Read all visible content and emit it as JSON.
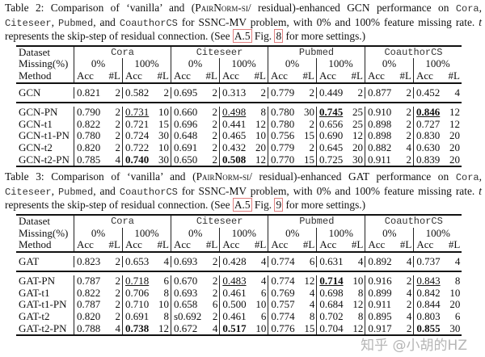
{
  "tables": [
    {
      "caption": [
        {
          "t": "Table 2:  Comparison of ‘vanilla’ and ("
        },
        {
          "t": "PairNorm-si",
          "c": "sc"
        },
        {
          "t": "/ residual)-enhanced GCN performance on "
        },
        {
          "t": "Cora",
          "c": "mono"
        },
        {
          "t": ", "
        },
        {
          "t": "Citeseer",
          "c": "mono"
        },
        {
          "t": ", "
        },
        {
          "t": "Pubmed",
          "c": "mono"
        },
        {
          "t": ", and "
        },
        {
          "t": "CoauthorCS",
          "c": "mono"
        },
        {
          "t": " for SSNC-MV problem, with 0% and 100% feature missing rate. "
        },
        {
          "t": "t",
          "c": "it"
        },
        {
          "t": " represents the skip-step of residual connection. (See "
        },
        {
          "t": "A.5",
          "c": "ref"
        },
        {
          "t": " Fig. "
        },
        {
          "t": "8",
          "c": "ref"
        },
        {
          "t": " for more settings.)"
        }
      ],
      "header": {
        "dataset": "Dataset",
        "missing": "Missing(%)",
        "method": "Method",
        "datasets": [
          "Cora",
          "Citeseer",
          "Pubmed",
          "CoauthorCS"
        ],
        "rates": [
          "0%",
          "100%"
        ],
        "acc": "Acc",
        "layers": "#L"
      },
      "baseline": {
        "method": "GCN",
        "cells": [
          [
            "0.821",
            "2"
          ],
          [
            "0.582",
            "2"
          ],
          [
            "0.695",
            "2"
          ],
          [
            "0.313",
            "2"
          ],
          [
            "0.779",
            "2"
          ],
          [
            "0.449",
            "2"
          ],
          [
            "0.877",
            "2"
          ],
          [
            "0.452",
            "4"
          ]
        ]
      },
      "rows": [
        {
          "method": "GCN-PN",
          "cells": [
            [
              "0.790",
              "2"
            ],
            [
              "0.731",
              "10",
              "u"
            ],
            [
              "0.660",
              "2"
            ],
            [
              "0.498",
              "8",
              "u"
            ],
            [
              "0.780",
              "30"
            ],
            [
              "0.745",
              "25",
              "bu"
            ],
            [
              "0.910",
              "2"
            ],
            [
              "0.846",
              "12",
              "bu"
            ]
          ]
        },
        {
          "method": "GCN-t1",
          "cells": [
            [
              "0.822",
              "2"
            ],
            [
              "0.721",
              "15"
            ],
            [
              "0.696",
              "2"
            ],
            [
              "0.441",
              "12"
            ],
            [
              "0.780",
              "2"
            ],
            [
              "0.656",
              "25"
            ],
            [
              "0.898",
              "2"
            ],
            [
              "0.727",
              "12"
            ]
          ]
        },
        {
          "method": "GCN-t1-PN",
          "cells": [
            [
              "0.780",
              "2"
            ],
            [
              "0.724",
              "30"
            ],
            [
              "0.648",
              "2"
            ],
            [
              "0.465",
              "10"
            ],
            [
              "0.756",
              "15"
            ],
            [
              "0.690",
              "12"
            ],
            [
              "0.898",
              "2"
            ],
            [
              "0.830",
              "20"
            ]
          ]
        },
        {
          "method": "GCN-t2",
          "cells": [
            [
              "0.820",
              "2"
            ],
            [
              "0.722",
              "10"
            ],
            [
              "0.691",
              "2"
            ],
            [
              "0.432",
              "20"
            ],
            [
              "0.779",
              "2"
            ],
            [
              "0.645",
              "20"
            ],
            [
              "0.882",
              "4"
            ],
            [
              "0.630",
              "20"
            ]
          ]
        },
        {
          "method": "GCN-t2-PN",
          "cells": [
            [
              "0.785",
              "4"
            ],
            [
              "0.740",
              "30",
              "b"
            ],
            [
              "0.650",
              "2"
            ],
            [
              "0.508",
              "12",
              "b"
            ],
            [
              "0.770",
              "15"
            ],
            [
              "0.725",
              "30"
            ],
            [
              "0.911",
              "2"
            ],
            [
              "0.839",
              "20"
            ]
          ]
        }
      ]
    },
    {
      "caption": [
        {
          "t": "Table 3:  Comparison of ‘vanilla’ and ("
        },
        {
          "t": "PairNorm-si",
          "c": "sc"
        },
        {
          "t": "/ residual)-enhanced GAT performance on "
        },
        {
          "t": "Cora",
          "c": "mono"
        },
        {
          "t": ", "
        },
        {
          "t": "Citeseer",
          "c": "mono"
        },
        {
          "t": ", "
        },
        {
          "t": "Pubmed",
          "c": "mono"
        },
        {
          "t": ", and "
        },
        {
          "t": "CoauthorCS",
          "c": "mono"
        },
        {
          "t": " for SSNC-MV problem, with 0% and 100% feature missing rate. "
        },
        {
          "t": "t",
          "c": "it"
        },
        {
          "t": " represents the skip-step of residual connection. (See "
        },
        {
          "t": "A.5",
          "c": "ref"
        },
        {
          "t": " Fig. "
        },
        {
          "t": "9",
          "c": "ref"
        },
        {
          "t": " for more settings.)"
        }
      ],
      "header": {
        "dataset": "Dataset",
        "missing": "Missing(%)",
        "method": "Method",
        "datasets": [
          "Cora",
          "Citeseer",
          "Pubmed",
          "CoauthorCS"
        ],
        "rates": [
          "0%",
          "100%"
        ],
        "acc": "Acc",
        "layers": "#L"
      },
      "baseline": {
        "method": "GAT",
        "cells": [
          [
            "0.823",
            "2"
          ],
          [
            "0.653",
            "4"
          ],
          [
            "0.693",
            "2"
          ],
          [
            "0.428",
            "4"
          ],
          [
            "0.774",
            "6"
          ],
          [
            "0.631",
            "4"
          ],
          [
            "0.892",
            "4"
          ],
          [
            "0.737",
            "4"
          ]
        ]
      },
      "rows": [
        {
          "method": "GAT-PN",
          "cells": [
            [
              "0.787",
              "2"
            ],
            [
              "0.718",
              "6",
              "u"
            ],
            [
              "0.670",
              "2"
            ],
            [
              "0.483",
              "4",
              "u"
            ],
            [
              "0.774",
              "12"
            ],
            [
              "0.714",
              "10",
              "bu"
            ],
            [
              "0.916",
              "2"
            ],
            [
              "0.843",
              "8",
              "u"
            ]
          ]
        },
        {
          "method": "GAT-t1",
          "cells": [
            [
              "0.822",
              "2"
            ],
            [
              "0.706",
              "8"
            ],
            [
              "0.693",
              "2"
            ],
            [
              "0.461",
              "6"
            ],
            [
              "0.769",
              "4"
            ],
            [
              "0.698",
              "8"
            ],
            [
              "0.899",
              "4"
            ],
            [
              "0.842",
              "10"
            ]
          ]
        },
        {
          "method": "GAT-t1-PN",
          "cells": [
            [
              "0.787",
              "2"
            ],
            [
              "0.710",
              "10"
            ],
            [
              "0.658",
              "6"
            ],
            [
              "0.500",
              "10"
            ],
            [
              "0.757",
              "4"
            ],
            [
              "0.684",
              "12"
            ],
            [
              "0.911",
              "2"
            ],
            [
              "0.844",
              "20"
            ]
          ]
        },
        {
          "method": "GAT-t2",
          "cells": [
            [
              "0.820",
              "2"
            ],
            [
              "0.691",
              "8"
            ],
            [
              "s0.692",
              "2"
            ],
            [
              "0.461",
              "6"
            ],
            [
              "0.774",
              "8"
            ],
            [
              "0.702",
              "8"
            ],
            [
              "0.895",
              "4"
            ],
            [
              "0.803",
              "6"
            ]
          ]
        },
        {
          "method": "GAT-t2-PN",
          "cells": [
            [
              "0.788",
              "4"
            ],
            [
              "0.738",
              "12",
              "b"
            ],
            [
              "0.672",
              "4"
            ],
            [
              "0.517",
              "10",
              "b"
            ],
            [
              "0.776",
              "15"
            ],
            [
              "0.704",
              "12"
            ],
            [
              "0.917",
              "2"
            ],
            [
              "0.855",
              "30",
              "b"
            ]
          ]
        }
      ]
    }
  ],
  "watermark": "知乎 @小胡的HZ"
}
